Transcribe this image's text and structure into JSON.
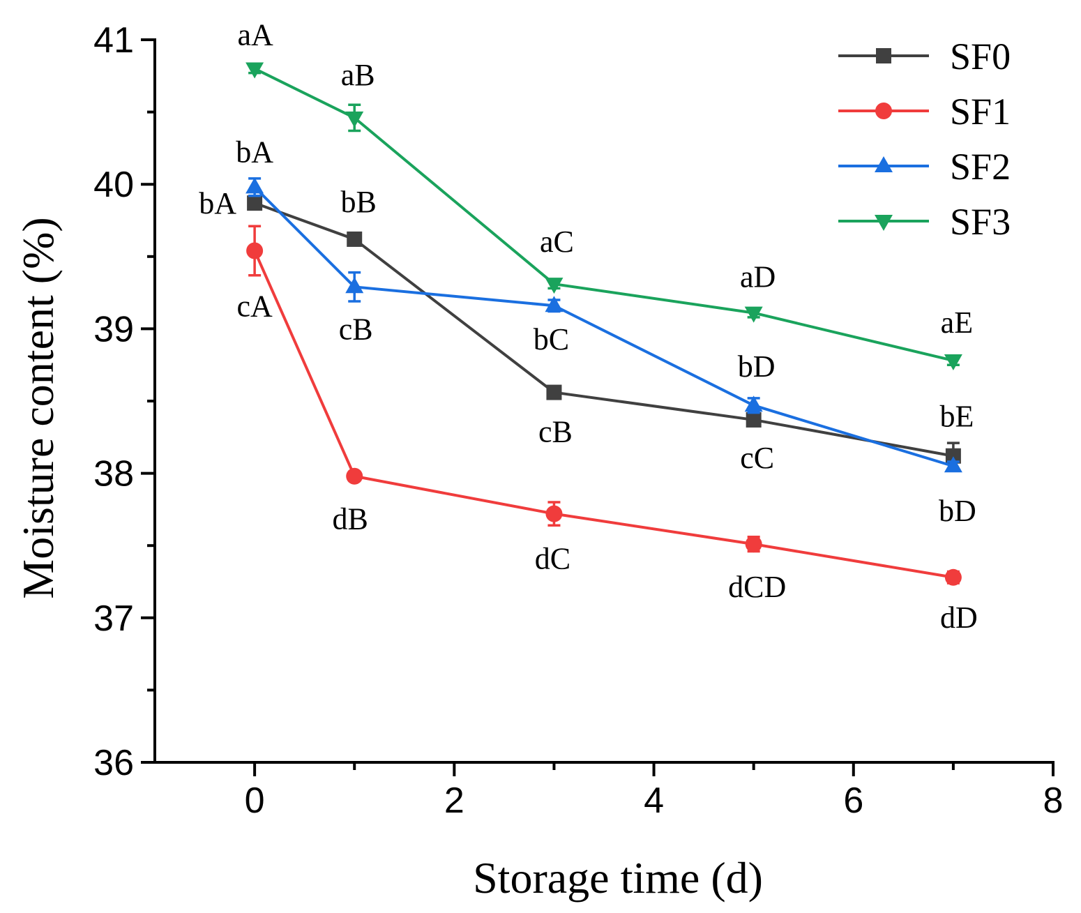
{
  "chart_data": {
    "type": "line",
    "xlabel": "Storage time (d)",
    "ylabel": "Moisture content (%)",
    "xlim": [
      -1,
      8
    ],
    "ylim": [
      36,
      41
    ],
    "xticks": [
      0,
      2,
      4,
      6,
      8
    ],
    "yticks": [
      36,
      37,
      38,
      39,
      40,
      41
    ],
    "legend_position": "top-right",
    "x": [
      0,
      1,
      3,
      5,
      7
    ],
    "series": [
      {
        "name": "SF0",
        "color": "#404040",
        "marker": "square",
        "values": [
          39.87,
          39.62,
          38.56,
          38.37,
          38.12
        ],
        "errors": [
          0.04,
          0.03,
          0.03,
          0.04,
          0.09
        ],
        "annotations": [
          "bA",
          "bB",
          "cB",
          "cC",
          "bE"
        ]
      },
      {
        "name": "SF1",
        "color": "#f03c3c",
        "marker": "circle",
        "values": [
          39.54,
          37.98,
          37.72,
          37.51,
          37.28
        ],
        "errors": [
          0.17,
          0.03,
          0.08,
          0.05,
          0.04
        ],
        "annotations": [
          "cA",
          "dB",
          "dC",
          "dCD",
          "dD"
        ]
      },
      {
        "name": "SF2",
        "color": "#1a6fe0",
        "marker": "triangle-up",
        "values": [
          39.98,
          39.29,
          39.16,
          38.47,
          38.05
        ],
        "errors": [
          0.06,
          0.1,
          0.04,
          0.05,
          0.03
        ],
        "annotations": [
          "bA",
          "cB",
          "bC",
          "bD",
          "bD"
        ]
      },
      {
        "name": "SF3",
        "color": "#1aa35c",
        "marker": "triangle-down",
        "values": [
          40.8,
          40.46,
          39.31,
          39.11,
          38.78
        ],
        "errors": [
          0.03,
          0.09,
          0.03,
          0.03,
          0.03
        ],
        "annotations": [
          "aA",
          "aB",
          "aC",
          "aD",
          "aE"
        ]
      }
    ]
  }
}
